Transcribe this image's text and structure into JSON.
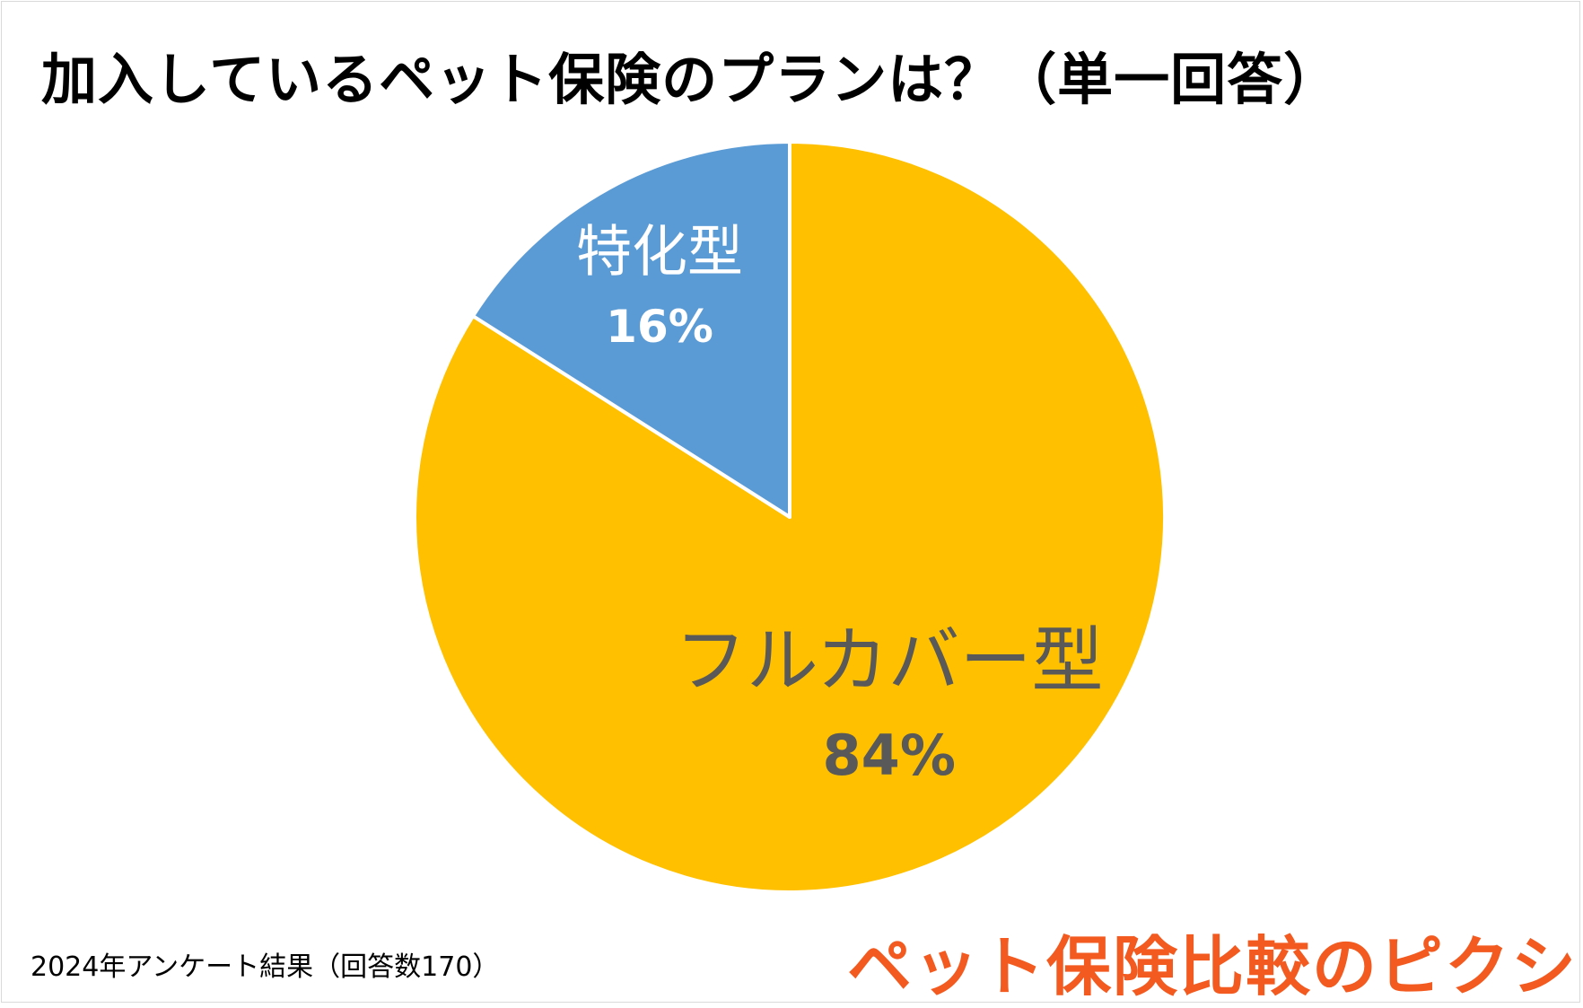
{
  "title": "加入しているペット保険のプランは？（単一回答）",
  "footnote": "2024年アンケート結果（回答数170）",
  "logo_text": "ペット保険比較のピクシー",
  "colors": {
    "full_cover": "#FFC000",
    "specialized": "#5B9BD5",
    "logo": "#F25A1F"
  },
  "chart_data": {
    "type": "pie",
    "title": "加入しているペット保険のプランは？（単一回答）",
    "start_angle": "12 o'clock",
    "direction": "clockwise",
    "slices": [
      {
        "name": "フルカバー型",
        "value": 84,
        "label": "84%",
        "color": "#FFC000"
      },
      {
        "name": "特化型",
        "value": 16,
        "label": "16%",
        "color": "#5B9BD5"
      }
    ]
  }
}
